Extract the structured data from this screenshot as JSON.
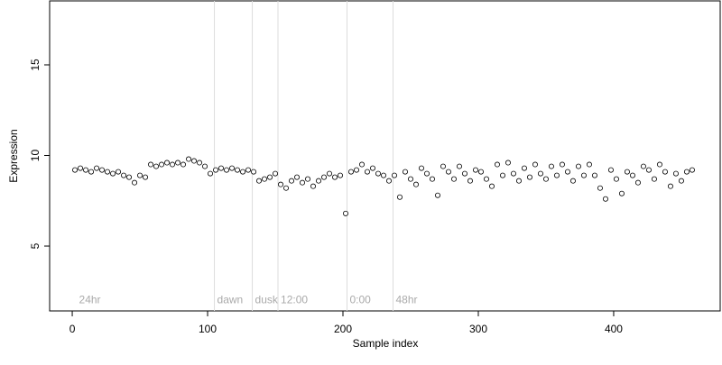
{
  "chart_data": {
    "type": "scatter",
    "x_label": "Sample index",
    "y_label": "Expression",
    "xlim": [
      -16.7,
      478.7
    ],
    "ylim": [
      1.42,
      18.58
    ],
    "xticks": [
      0,
      100,
      200,
      300,
      400
    ],
    "yticks": [
      5,
      10,
      15
    ],
    "vlines": [
      105,
      133,
      152,
      203,
      237
    ],
    "annotations": [
      {
        "x": 3,
        "label": "24hr"
      },
      {
        "x": 105,
        "label": "dawn"
      },
      {
        "x": 133,
        "label": "dusk"
      },
      {
        "x": 152,
        "label": "12:00"
      },
      {
        "x": 203,
        "label": "0:00"
      },
      {
        "x": 237,
        "label": "48hr"
      }
    ],
    "color": "#000000",
    "x": [
      2,
      6,
      10,
      14,
      18,
      22,
      26,
      30,
      34,
      38,
      42,
      46,
      50,
      54,
      58,
      62,
      66,
      70,
      74,
      78,
      82,
      86,
      90,
      94,
      98,
      102,
      106,
      110,
      114,
      118,
      122,
      126,
      130,
      134,
      138,
      142,
      146,
      150,
      154,
      158,
      162,
      166,
      170,
      174,
      178,
      182,
      186,
      190,
      194,
      198,
      202,
      206,
      210,
      214,
      218,
      222,
      226,
      230,
      234,
      238,
      242,
      246,
      250,
      254,
      258,
      262,
      266,
      270,
      274,
      278,
      282,
      286,
      290,
      294,
      298,
      302,
      306,
      310,
      314,
      318,
      322,
      326,
      330,
      334,
      338,
      342,
      346,
      350,
      354,
      358,
      362,
      366,
      370,
      374,
      378,
      382,
      386,
      390,
      394,
      398,
      402,
      406,
      410,
      414,
      418,
      422,
      426,
      430,
      434,
      438,
      442,
      446,
      450,
      454,
      458
    ],
    "values": [
      9.2,
      9.3,
      9.2,
      9.1,
      9.3,
      9.2,
      9.1,
      9.0,
      9.1,
      8.9,
      8.8,
      8.5,
      8.9,
      8.8,
      9.5,
      9.4,
      9.5,
      9.6,
      9.5,
      9.6,
      9.5,
      9.8,
      9.7,
      9.6,
      9.4,
      9.0,
      9.2,
      9.3,
      9.2,
      9.3,
      9.2,
      9.1,
      9.2,
      9.1,
      8.6,
      8.7,
      8.8,
      9.0,
      8.4,
      8.2,
      8.6,
      8.8,
      8.5,
      8.7,
      8.3,
      8.6,
      8.8,
      9.0,
      8.8,
      8.9,
      6.8,
      9.1,
      9.2,
      9.5,
      9.1,
      9.3,
      9.0,
      8.9,
      8.6,
      8.9,
      7.7,
      9.1,
      8.7,
      8.4,
      9.3,
      9.0,
      8.7,
      7.8,
      9.4,
      9.1,
      8.7,
      9.4,
      9.0,
      8.6,
      9.2,
      9.1,
      8.7,
      8.3,
      9.5,
      8.9,
      9.6,
      9.0,
      8.6,
      9.3,
      8.8,
      9.5,
      9.0,
      8.7,
      9.4,
      8.9,
      9.5,
      9.1,
      8.6,
      9.4,
      8.9,
      9.5,
      8.9,
      8.2,
      7.6,
      9.2,
      8.7,
      7.9,
      9.1,
      8.9,
      8.5,
      9.4,
      9.2,
      8.7,
      9.5,
      9.1,
      8.3,
      9.0,
      8.6,
      9.1,
      9.2
    ]
  }
}
